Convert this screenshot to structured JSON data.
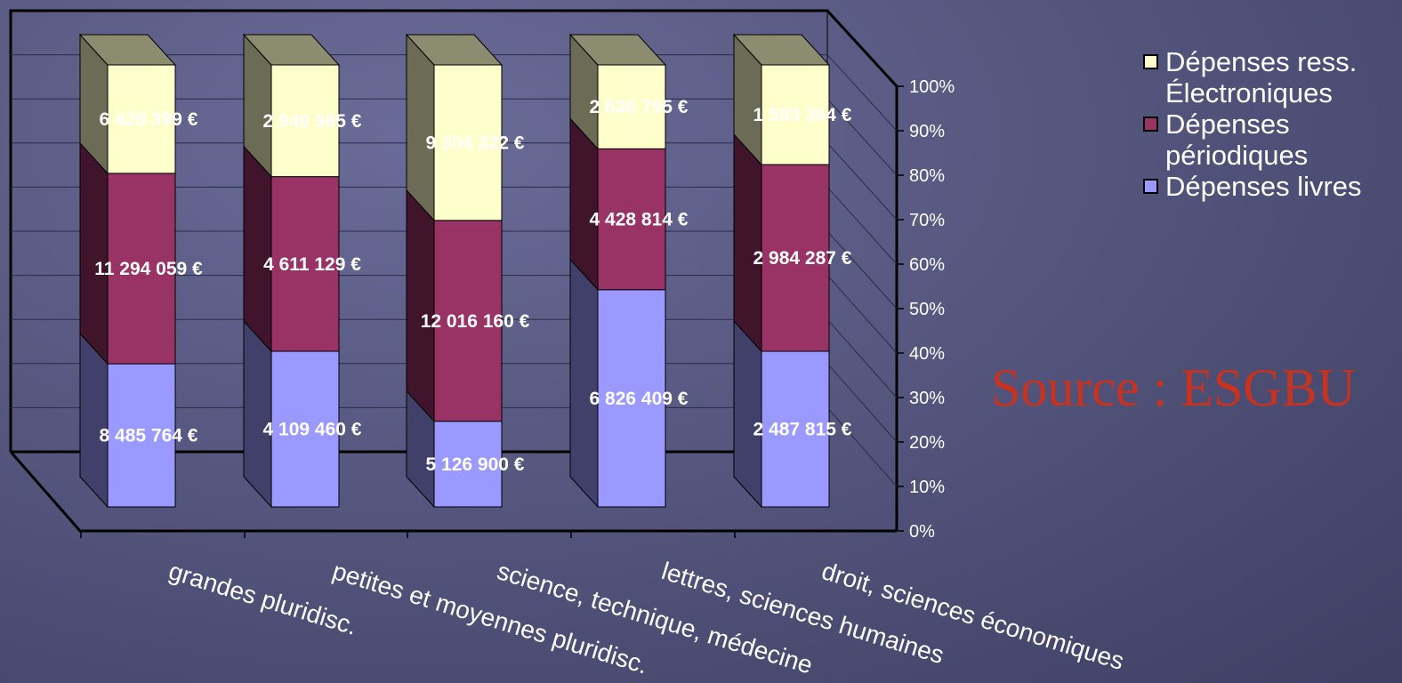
{
  "chart_data": {
    "type": "bar",
    "stacked": "percent",
    "three_d": true,
    "categories": [
      "grandes pluridisc.",
      "petites et moyennes pluridisc.",
      "science, technique, médecine",
      "lettres, sciences humaines",
      "droit, sciences économiques"
    ],
    "series": [
      {
        "name": "Dépenses livres",
        "color": "#9999ff",
        "values": [
          8485764,
          4109460,
          5126900,
          6826409,
          2487815
        ],
        "labels": [
          "8 485 764 €",
          "4 109 460 €",
          "5 126 900 €",
          "6 826 409 €",
          "2 487 815 €"
        ]
      },
      {
        "name": "Dépenses périodiques",
        "color": "#993366",
        "values": [
          11294059,
          4611129,
          12016160,
          4428814,
          2984287
        ],
        "labels": [
          "11 294 059 €",
          "4 611 129 €",
          "12 016 160 €",
          "4 428 814 €",
          "2 984 287 €"
        ]
      },
      {
        "name": "Dépenses ress. Électroniques",
        "color": "#ffffcc",
        "values": [
          6428399,
          2949965,
          9304322,
          2636795,
          1593364
        ],
        "labels": [
          "6 428 399 €",
          "2 949 965 €",
          "9 304 322 €",
          "2 636 795 €",
          "1 593 364 €"
        ]
      }
    ],
    "y_ticks": [
      "0%",
      "10%",
      "20%",
      "30%",
      "40%",
      "50%",
      "60%",
      "70%",
      "80%",
      "90%",
      "100%"
    ],
    "ylim": [
      0,
      100
    ],
    "grid": true,
    "legend_position": "top-right"
  },
  "legend": {
    "items": [
      {
        "label": "Dépenses ress. Électroniques",
        "color": "#ffffcc"
      },
      {
        "label": "Dépenses périodiques",
        "color": "#993366"
      },
      {
        "label": "Dépenses livres",
        "color": "#9999ff"
      }
    ]
  },
  "source_note": "Source : ESGBU"
}
